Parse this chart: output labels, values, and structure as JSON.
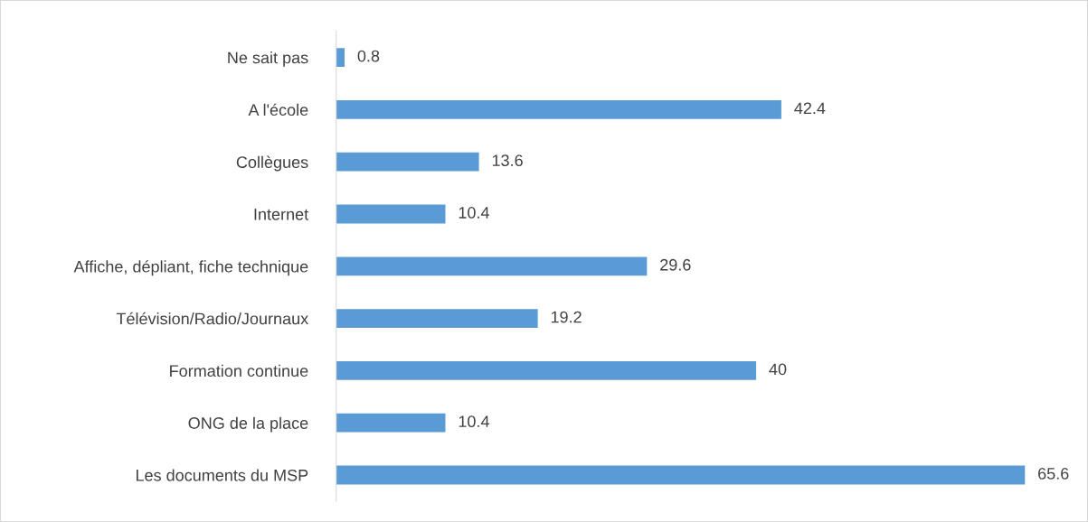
{
  "chart_data": {
    "type": "bar",
    "orientation": "horizontal",
    "categories": [
      "Ne sait pas",
      "A l'école",
      "Collègues",
      "Internet",
      "Affiche, dépliant, fiche technique",
      "Télévision/Radio/Journaux",
      "Formation continue",
      "ONG de la place",
      "Les documents du MSP"
    ],
    "values": [
      0.8,
      42.4,
      13.6,
      10.4,
      29.6,
      19.2,
      40,
      10.4,
      65.6
    ],
    "color": "#5b9bd5",
    "data_labels": true,
    "grid": false,
    "legend": false
  }
}
